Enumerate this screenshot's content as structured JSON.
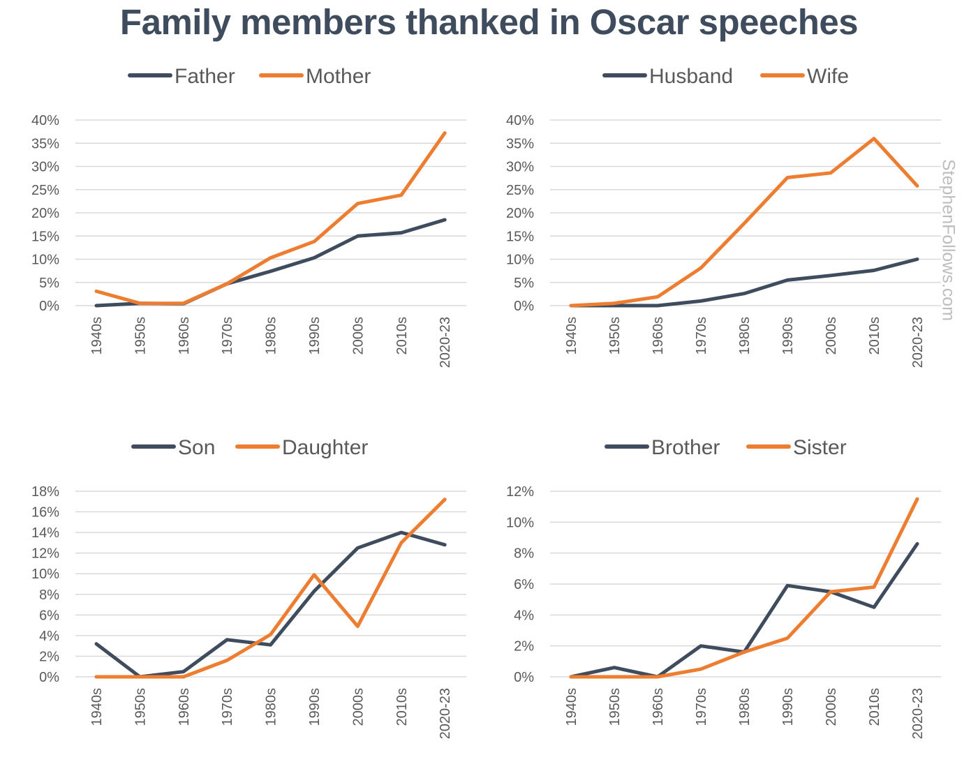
{
  "title": "Family members thanked in Oscar speeches",
  "watermark": "StephenFollows.com",
  "colors": {
    "dark": "#3e4c5e",
    "orange": "#ed7d31",
    "grid": "#d9d9d9",
    "text": "#595959"
  },
  "chart_data": [
    {
      "type": "line",
      "categories": [
        "1940s",
        "1950s",
        "1960s",
        "1970s",
        "1980s",
        "1990s",
        "2000s",
        "2010s",
        "2020-23"
      ],
      "ylim": [
        0,
        40
      ],
      "yticks": [
        0,
        5,
        10,
        15,
        20,
        25,
        30,
        35,
        40
      ],
      "ytick_labels": [
        "0%",
        "5%",
        "10%",
        "15%",
        "20%",
        "25%",
        "30%",
        "35%",
        "40%"
      ],
      "legend_position": "top",
      "series": [
        {
          "name": "Father",
          "color": "#3e4c5e",
          "values": [
            0,
            0.5,
            0.4,
            4.7,
            7.4,
            10.3,
            15.0,
            15.7,
            18.5
          ]
        },
        {
          "name": "Mother",
          "color": "#ed7d31",
          "values": [
            3.1,
            0.5,
            0.5,
            4.7,
            10.3,
            13.8,
            22.0,
            23.8,
            37.2
          ]
        }
      ]
    },
    {
      "type": "line",
      "categories": [
        "1940s",
        "1950s",
        "1960s",
        "1970s",
        "1980s",
        "1990s",
        "2000s",
        "2010s",
        "2020-23"
      ],
      "ylim": [
        0,
        40
      ],
      "yticks": [
        0,
        5,
        10,
        15,
        20,
        25,
        30,
        35,
        40
      ],
      "ytick_labels": [
        "0%",
        "5%",
        "10%",
        "15%",
        "20%",
        "25%",
        "30%",
        "35%",
        "40%"
      ],
      "legend_position": "top",
      "series": [
        {
          "name": "Husband",
          "color": "#3e4c5e",
          "values": [
            0,
            0,
            0,
            1.0,
            2.6,
            5.5,
            6.5,
            7.6,
            10.0
          ]
        },
        {
          "name": "Wife",
          "color": "#ed7d31",
          "values": [
            0,
            0.5,
            1.9,
            8.1,
            17.7,
            27.6,
            28.6,
            36.0,
            25.8
          ]
        }
      ]
    },
    {
      "type": "line",
      "categories": [
        "1940s",
        "1950s",
        "1960s",
        "1970s",
        "1980s",
        "1990s",
        "2000s",
        "2010s",
        "2020-23"
      ],
      "ylim": [
        0,
        18
      ],
      "yticks": [
        0,
        2,
        4,
        6,
        8,
        10,
        12,
        14,
        16,
        18
      ],
      "ytick_labels": [
        "0%",
        "2%",
        "4%",
        "6%",
        "8%",
        "10%",
        "12%",
        "14%",
        "16%",
        "18%"
      ],
      "legend_position": "top",
      "series": [
        {
          "name": "Son",
          "color": "#3e4c5e",
          "values": [
            3.2,
            0,
            0.5,
            3.6,
            3.1,
            8.3,
            12.5,
            14.0,
            12.8
          ]
        },
        {
          "name": "Daughter",
          "color": "#ed7d31",
          "values": [
            0,
            0,
            0,
            1.6,
            4.1,
            9.9,
            4.9,
            13.0,
            17.2
          ]
        }
      ]
    },
    {
      "type": "line",
      "categories": [
        "1940s",
        "1950s",
        "1960s",
        "1970s",
        "1980s",
        "1990s",
        "2000s",
        "2010s",
        "2020-23"
      ],
      "ylim": [
        0,
        12
      ],
      "yticks": [
        0,
        2,
        4,
        6,
        8,
        10,
        12
      ],
      "ytick_labels": [
        "0%",
        "2%",
        "4%",
        "6%",
        "8%",
        "10%",
        "12%"
      ],
      "legend_position": "top",
      "series": [
        {
          "name": "Brother",
          "color": "#3e4c5e",
          "values": [
            0,
            0.6,
            0,
            2.0,
            1.6,
            5.9,
            5.5,
            4.5,
            8.6
          ]
        },
        {
          "name": "Sister",
          "color": "#ed7d31",
          "values": [
            0,
            0,
            0,
            0.5,
            1.6,
            2.5,
            5.5,
            5.8,
            11.5
          ]
        }
      ]
    }
  ]
}
